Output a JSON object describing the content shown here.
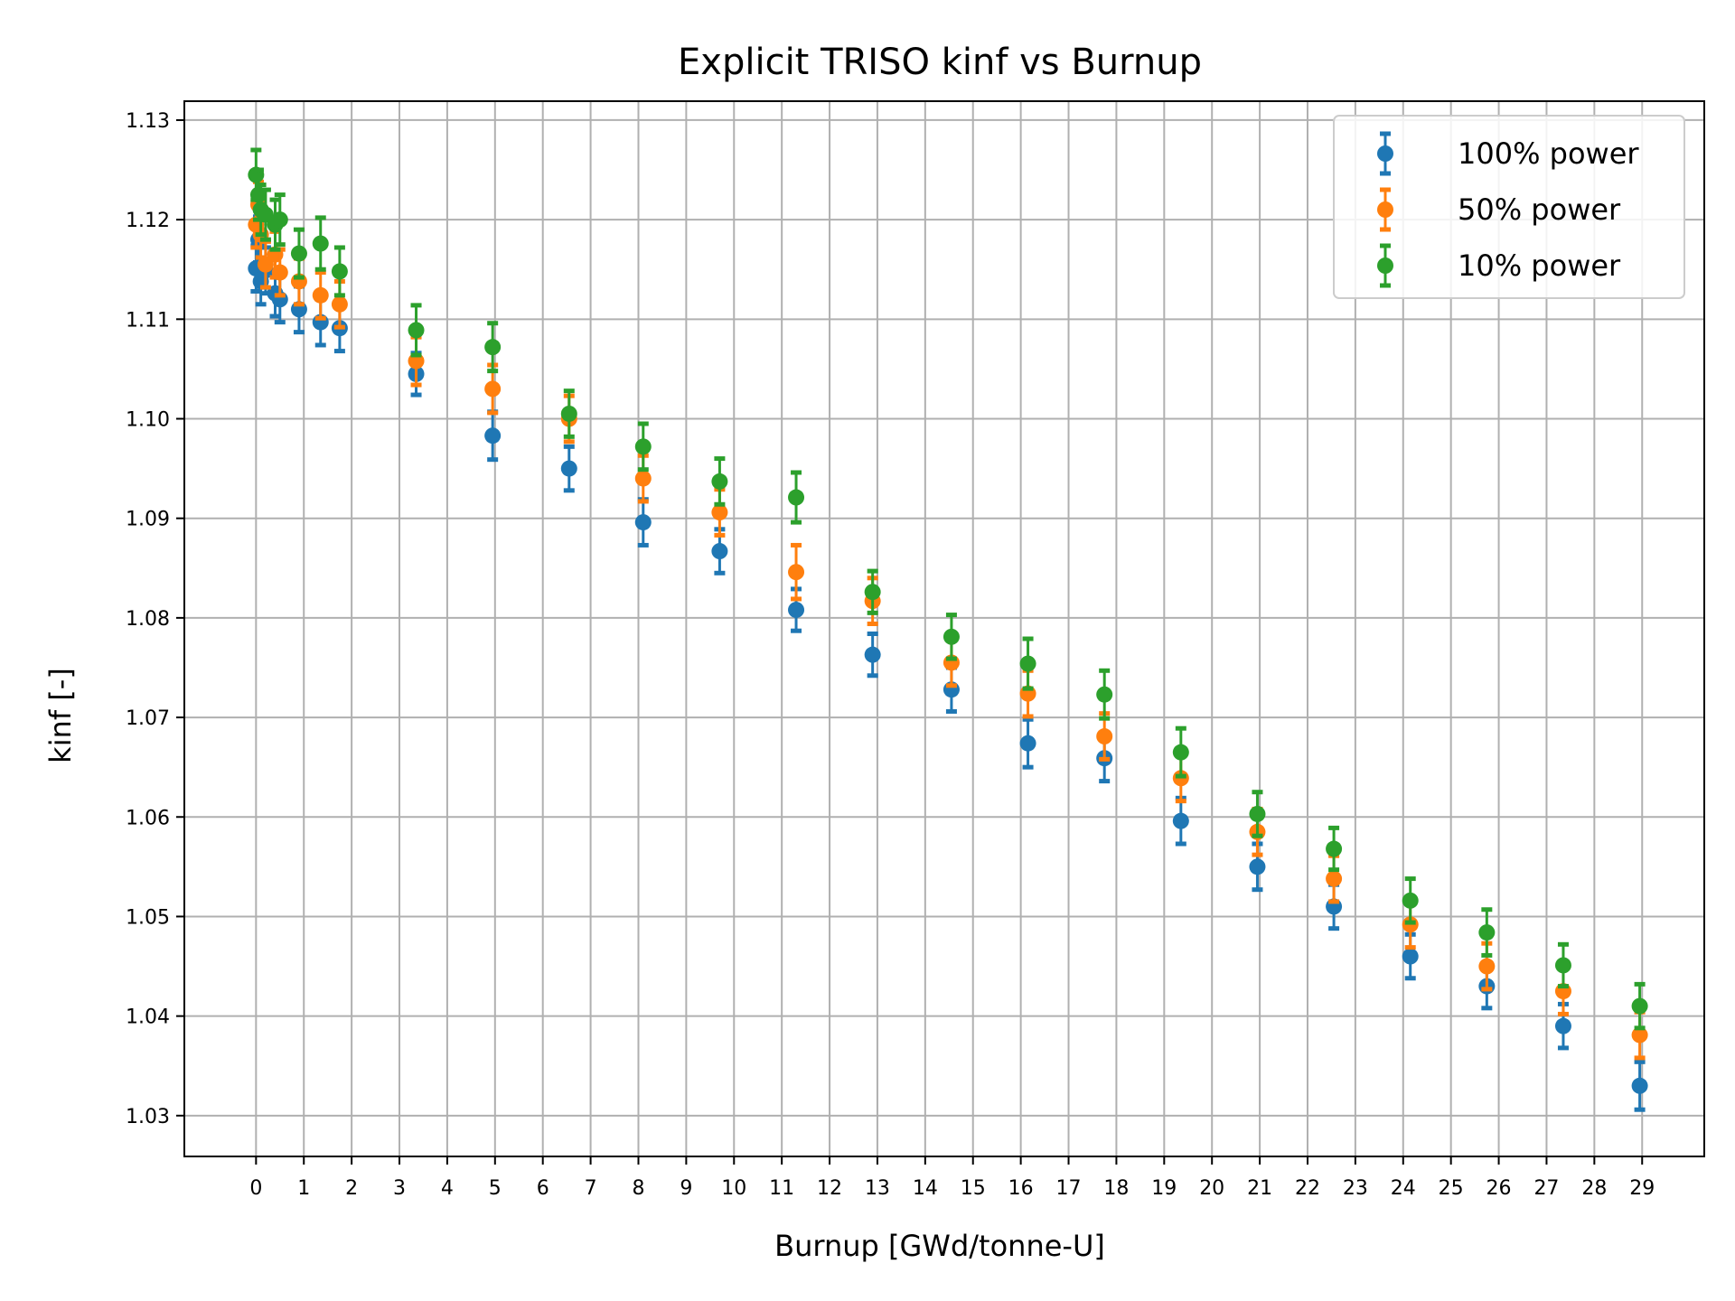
{
  "chart_data": {
    "type": "scatter",
    "title": "Explicit TRISO kinf vs Burnup",
    "xlabel": "Burnup [GWd/tonne-U]",
    "ylabel": "kinf [-]",
    "xlim": [
      -1.5,
      30.3
    ],
    "ylim": [
      1.0259,
      1.1319
    ],
    "xticks": [
      0,
      1,
      2,
      3,
      4,
      5,
      6,
      7,
      8,
      9,
      10,
      11,
      12,
      13,
      14,
      15,
      16,
      17,
      18,
      19,
      20,
      21,
      22,
      23,
      24,
      25,
      26,
      27,
      28,
      29
    ],
    "yticks": [
      1.03,
      1.04,
      1.05,
      1.06,
      1.07,
      1.08,
      1.09,
      1.1,
      1.11,
      1.12,
      1.13
    ],
    "ytick_labels": [
      "1.03",
      "1.04",
      "1.05",
      "1.06",
      "1.07",
      "1.08",
      "1.09",
      "1.10",
      "1.11",
      "1.12",
      "1.13"
    ],
    "grid": true,
    "legend_position": "top-right",
    "x": [
      0,
      0.05,
      0.1,
      0.2,
      0.4,
      0.5,
      0.9,
      1.35,
      1.75,
      3.35,
      4.95,
      6.55,
      8.1,
      9.7,
      11.3,
      12.9,
      14.55,
      16.15,
      17.75,
      19.35,
      20.95,
      22.55,
      24.15,
      25.75,
      27.35,
      28.95
    ],
    "series": [
      {
        "name": "100% power",
        "color": "#1f77b4",
        "values": [
          1.1151,
          1.118,
          1.1138,
          1.1149,
          1.1126,
          1.112,
          1.111,
          1.1097,
          1.1091,
          1.1045,
          1.0983,
          1.095,
          1.0896,
          1.0867,
          1.0808,
          1.0763,
          1.0728,
          1.0674,
          1.0659,
          1.0596,
          1.055,
          1.051,
          1.046,
          1.043,
          1.039,
          1.033
        ],
        "errors": [
          0.0023,
          0.0023,
          0.0023,
          0.0023,
          0.0023,
          0.0023,
          0.0023,
          0.0023,
          0.0023,
          0.0021,
          0.0024,
          0.0022,
          0.0023,
          0.0022,
          0.0021,
          0.0021,
          0.0022,
          0.0024,
          0.0023,
          0.0023,
          0.0023,
          0.0022,
          0.0022,
          0.0022,
          0.0022,
          0.0024
        ]
      },
      {
        "name": "50% power",
        "color": "#ff7f0e",
        "values": [
          1.1195,
          1.1215,
          1.1185,
          1.1155,
          1.1165,
          1.1147,
          1.1138,
          1.1124,
          1.1115,
          1.1058,
          1.103,
          1.1,
          1.094,
          1.0906,
          1.0846,
          1.0817,
          1.0755,
          1.0724,
          1.0681,
          1.0639,
          1.0585,
          1.0538,
          1.0492,
          1.045,
          1.0425,
          1.0381
        ],
        "errors": [
          0.0023,
          0.0023,
          0.0023,
          0.0023,
          0.0023,
          0.0023,
          0.0023,
          0.0023,
          0.0023,
          0.0024,
          0.0024,
          0.0023,
          0.0023,
          0.0023,
          0.0027,
          0.0023,
          0.0023,
          0.0023,
          0.0023,
          0.0023,
          0.0023,
          0.0023,
          0.0023,
          0.0023,
          0.0023,
          0.0023
        ]
      },
      {
        "name": "10% power",
        "color": "#2ca02c",
        "values": [
          1.1245,
          1.1225,
          1.121,
          1.1205,
          1.1195,
          1.12,
          1.1166,
          1.1176,
          1.1148,
          1.1089,
          1.1072,
          1.1005,
          1.0972,
          1.0937,
          1.0921,
          1.0826,
          1.0781,
          1.0754,
          1.0723,
          1.0665,
          1.0603,
          1.0568,
          1.0516,
          1.0484,
          1.0451,
          1.041
        ],
        "errors": [
          0.0025,
          0.0025,
          0.0025,
          0.0025,
          0.0025,
          0.0025,
          0.0024,
          0.0026,
          0.0024,
          0.0025,
          0.0024,
          0.0023,
          0.0023,
          0.0023,
          0.0025,
          0.0021,
          0.0022,
          0.0025,
          0.0024,
          0.0024,
          0.0022,
          0.0021,
          0.0022,
          0.0023,
          0.0021,
          0.0022
        ]
      }
    ]
  }
}
